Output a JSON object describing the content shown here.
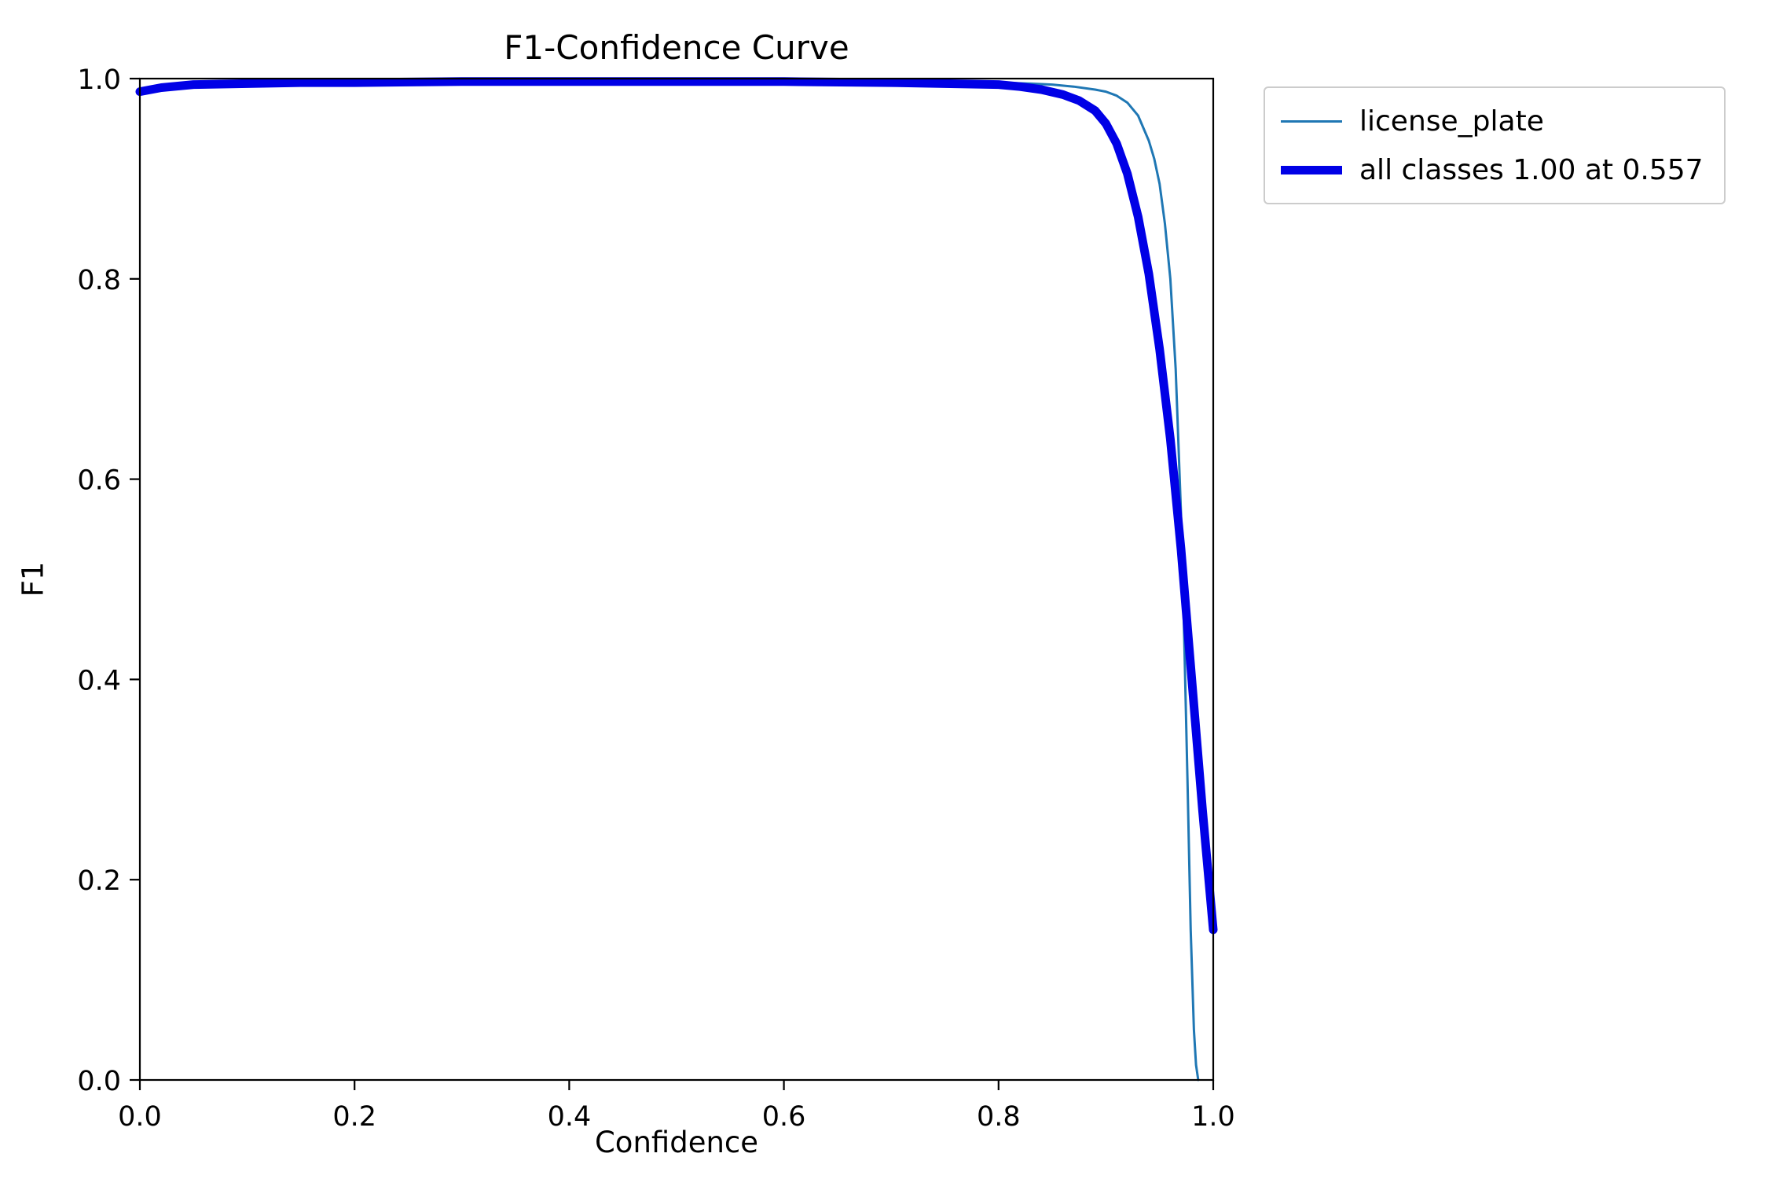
{
  "chart_data": {
    "type": "line",
    "title": "F1-Confidence Curve",
    "xlabel": "Confidence",
    "ylabel": "F1",
    "xlim": [
      0.0,
      1.0
    ],
    "ylim": [
      0.0,
      1.0
    ],
    "xticks": [
      "0.0",
      "0.2",
      "0.4",
      "0.6",
      "0.8",
      "1.0"
    ],
    "yticks": [
      "0.0",
      "0.2",
      "0.4",
      "0.6",
      "0.8",
      "1.0"
    ],
    "grid": false,
    "legend_position": "outside upper right",
    "series": [
      {
        "name": "license_plate",
        "color": "#1f77b4",
        "weight": "thin",
        "x": [
          0.0,
          0.02,
          0.05,
          0.1,
          0.15,
          0.2,
          0.3,
          0.4,
          0.5,
          0.6,
          0.7,
          0.75,
          0.8,
          0.83,
          0.85,
          0.87,
          0.89,
          0.9,
          0.91,
          0.92,
          0.93,
          0.94,
          0.945,
          0.95,
          0.955,
          0.96,
          0.965,
          0.97,
          0.973,
          0.976,
          0.979,
          0.982,
          0.984,
          0.986
        ],
        "y": [
          0.99,
          0.992,
          0.994,
          0.996,
          0.996,
          0.997,
          0.997,
          0.997,
          0.997,
          0.997,
          0.997,
          0.996,
          0.996,
          0.995,
          0.994,
          0.992,
          0.989,
          0.987,
          0.983,
          0.976,
          0.963,
          0.938,
          0.92,
          0.895,
          0.855,
          0.8,
          0.71,
          0.565,
          0.44,
          0.3,
          0.15,
          0.05,
          0.015,
          0.0
        ]
      },
      {
        "name": "all classes 1.00 at 0.557",
        "color": "#0000e6",
        "weight": "thick",
        "x": [
          0.0,
          0.02,
          0.05,
          0.1,
          0.15,
          0.2,
          0.3,
          0.4,
          0.5,
          0.557,
          0.6,
          0.7,
          0.75,
          0.8,
          0.82,
          0.84,
          0.86,
          0.875,
          0.89,
          0.9,
          0.91,
          0.92,
          0.93,
          0.94,
          0.95,
          0.96,
          0.97,
          0.98,
          0.99,
          1.0
        ],
        "y": [
          0.987,
          0.991,
          0.994,
          0.995,
          0.996,
          0.996,
          0.997,
          0.997,
          0.997,
          0.997,
          0.997,
          0.996,
          0.995,
          0.994,
          0.992,
          0.989,
          0.984,
          0.978,
          0.968,
          0.955,
          0.935,
          0.905,
          0.862,
          0.805,
          0.73,
          0.64,
          0.53,
          0.4,
          0.27,
          0.15
        ]
      }
    ],
    "best_f1_annotation": "all classes 1.00 at 0.557"
  }
}
